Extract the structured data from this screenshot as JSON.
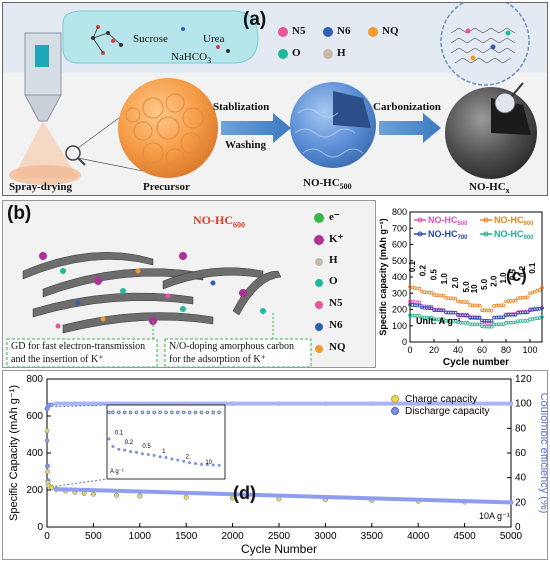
{
  "panel_a": {
    "label": "(a)",
    "sucrose": "Sucrose",
    "urea": "Urea",
    "nahco3": "NaHCO",
    "nahco3_sub": "3",
    "spray_drying": "Spray-drying",
    "precursor": "Precursor",
    "stabilization": "Stablization",
    "washing": "Washing",
    "carbonization": "Carbonization",
    "no_hc500": "NO-HC",
    "no_hc500_sub": "500",
    "no_hcx": "NO-HC",
    "no_hcx_sub": "x",
    "legend": [
      {
        "label": "N5",
        "color": "#e8559a"
      },
      {
        "label": "N6",
        "color": "#2f5fb0"
      },
      {
        "label": "NQ",
        "color": "#f39a2c"
      },
      {
        "label": "O",
        "color": "#1fb89a"
      },
      {
        "label": "H",
        "color": "#c9b8a8"
      }
    ]
  },
  "panel_b": {
    "label": "(b)",
    "title": "NO-HC",
    "title_sub": "600",
    "legend": [
      {
        "label": "e⁻",
        "color": "#39b54a"
      },
      {
        "label": "K⁺",
        "color": "#b0309a"
      },
      {
        "label": "H",
        "color": "#c9b8a8"
      },
      {
        "label": "O",
        "color": "#1fb89a"
      },
      {
        "label": "N5",
        "color": "#e8559a"
      },
      {
        "label": "N6",
        "color": "#2f5fb0"
      },
      {
        "label": "NQ",
        "color": "#f39a2c"
      }
    ],
    "note1_line1": "GD for fast electron-transmission",
    "note1_line2": "and the insertion of K⁺",
    "note2_line1": "N/O-doping amorphous carbon",
    "note2_line2": "for the adsorption of K⁺"
  },
  "panel_c": {
    "label": "(c)",
    "ylabel": "Specific capacity (mAh g⁻¹)",
    "xlabel": "Cycle number",
    "unit": "Unit: A g⁻¹",
    "rate_labels_left": [
      "0.1",
      "0.2",
      "0.5",
      "1.0",
      "2.0",
      "5.0"
    ],
    "rate_labels_right": [
      "10",
      "5.0",
      "2.0",
      "1.0",
      "0.5",
      "0.2",
      "0.1"
    ],
    "legend": [
      {
        "name": "NO-HC",
        "sub": "500",
        "color": "#e04ec0"
      },
      {
        "name": "NO-HC",
        "sub": "600",
        "color": "#f0801e"
      },
      {
        "name": "NO-HC",
        "sub": "700",
        "color": "#2545b0"
      },
      {
        "name": "NO-HC",
        "sub": "900",
        "color": "#20b08e"
      }
    ]
  },
  "panel_d": {
    "label": "(d)",
    "ylabel_left": "Specific Capacity (mAh g⁻¹)",
    "ylabel_right": "Coulombic efficiency (%)",
    "xlabel": "Cycle Number",
    "current": "10A g⁻¹",
    "legend_charge": "Charge capacity",
    "legend_discharge": "Discharge capacity",
    "inset_unit": "A g⁻¹",
    "inset_rates": [
      "0.1",
      "0.2",
      "0.5",
      "1",
      "2",
      "10"
    ]
  },
  "chart_data": [
    {
      "type": "line",
      "x": [
        0,
        2,
        4,
        6,
        8,
        10,
        12,
        14,
        16,
        18,
        20,
        22,
        24,
        26,
        28,
        30,
        32,
        34,
        36,
        38,
        40,
        42,
        44,
        46,
        48,
        50,
        52,
        54,
        56,
        58,
        60,
        62,
        64,
        66,
        68,
        70,
        72,
        74,
        76,
        78,
        80,
        82,
        84,
        86,
        88,
        90,
        92,
        94,
        96,
        98,
        100,
        102,
        104,
        106,
        108,
        110
      ],
      "series": [
        {
          "name": "NO-HC500",
          "values": [
            250,
            248,
            246,
            244,
            244,
            222,
            220,
            218,
            218,
            218,
            200,
            199,
            198,
            198,
            197,
            183,
            182,
            182,
            181,
            181,
            164,
            163,
            162,
            162,
            161,
            148,
            147,
            147,
            146,
            146,
            120,
            119,
            118,
            118,
            118,
            150,
            150,
            151,
            151,
            152,
            170,
            171,
            171,
            172,
            172,
            184,
            185,
            185,
            186,
            186,
            202,
            203,
            204,
            205,
            205,
            208
          ]
        },
        {
          "name": "NO-HC600",
          "values": [
            340,
            336,
            332,
            330,
            328,
            310,
            307,
            305,
            304,
            303,
            290,
            288,
            287,
            286,
            285,
            272,
            270,
            269,
            268,
            267,
            250,
            248,
            247,
            246,
            246,
            228,
            226,
            225,
            225,
            224,
            196,
            195,
            194,
            194,
            193,
            222,
            224,
            225,
            226,
            226,
            250,
            252,
            253,
            253,
            254,
            270,
            272,
            273,
            274,
            275,
            300,
            305,
            310,
            315,
            320,
            335
          ]
        },
        {
          "name": "NO-HC700",
          "values": [
            230,
            228,
            226,
            225,
            224,
            212,
            210,
            209,
            208,
            208,
            196,
            195,
            195,
            194,
            194,
            182,
            181,
            181,
            180,
            180,
            168,
            167,
            167,
            166,
            166,
            153,
            152,
            152,
            151,
            151,
            132,
            131,
            131,
            130,
            130,
            150,
            151,
            152,
            152,
            153,
            166,
            167,
            167,
            168,
            168,
            180,
            181,
            182,
            182,
            183,
            196,
            198,
            200,
            202,
            204,
            210
          ]
        },
        {
          "name": "NO-HC900",
          "values": [
            165,
            163,
            162,
            161,
            160,
            152,
            151,
            150,
            150,
            149,
            141,
            140,
            140,
            139,
            139,
            131,
            130,
            130,
            129,
            129,
            120,
            119,
            119,
            118,
            118,
            110,
            109,
            109,
            108,
            108,
            96,
            95,
            95,
            94,
            94,
            108,
            108,
            109,
            109,
            110,
            118,
            119,
            119,
            120,
            120,
            128,
            129,
            129,
            130,
            130,
            140,
            142,
            144,
            146,
            148,
            152
          ]
        }
      ],
      "xlabel": "Cycle number",
      "ylabel": "Specific capacity (mAh g⁻¹)",
      "xlim": [
        0,
        110
      ],
      "ylim": [
        0,
        800
      ],
      "xticks": [
        0,
        20,
        40,
        60,
        80,
        100
      ],
      "yticks": [
        0,
        100,
        200,
        300,
        400,
        500,
        600,
        700,
        800
      ]
    },
    {
      "type": "scatter",
      "x": [
        1,
        5,
        10,
        20,
        50,
        100,
        200,
        300,
        400,
        500,
        750,
        1000,
        1500,
        2000,
        2500,
        3000,
        3500,
        4000,
        4500,
        5000
      ],
      "series": [
        {
          "name": "Discharge capacity",
          "values": [
            640,
            330,
            250,
            225,
            215,
            205,
            195,
            188,
            182,
            178,
            172,
            168,
            162,
            157,
            152,
            148,
            144,
            140,
            136,
            133
          ]
        },
        {
          "name": "Charge capacity",
          "values": [
            520,
            300,
            240,
            222,
            213,
            203,
            194,
            187,
            181,
            177,
            171,
            167,
            161,
            156,
            151,
            147,
            143,
            139,
            135,
            132
          ]
        },
        {
          "name": "Coulombic efficiency",
          "values": [
            70,
            96,
            98,
            99,
            99,
            100,
            100,
            100,
            100,
            100,
            100,
            100,
            100,
            100,
            100,
            100,
            100,
            100,
            100,
            100
          ]
        }
      ],
      "xlabel": "Cycle Number",
      "ylabel": "Specific Capacity (mAh g⁻¹)",
      "y2label": "Coulombic efficiency (%)",
      "xlim": [
        0,
        5000
      ],
      "ylim": [
        0,
        800
      ],
      "y2lim": [
        0,
        120
      ],
      "xticks": [
        0,
        500,
        1000,
        1500,
        2000,
        2500,
        3000,
        3500,
        4000,
        4500,
        5000
      ],
      "yticks": [
        0,
        200,
        400,
        600,
        800
      ],
      "y2ticks": [
        0,
        20,
        40,
        60,
        80,
        100,
        120
      ]
    }
  ]
}
